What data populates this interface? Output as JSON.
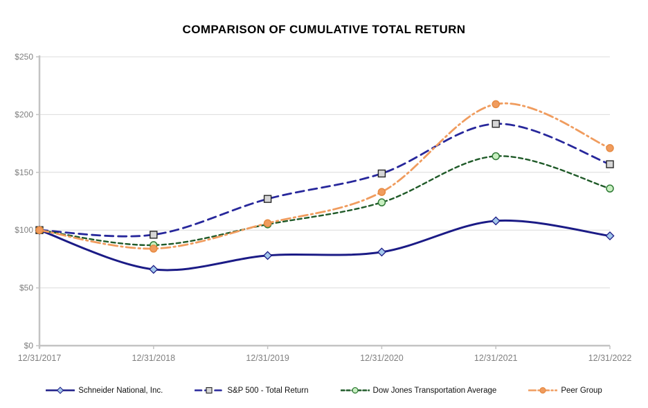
{
  "title": "COMPARISON OF CUMULATIVE TOTAL RETURN",
  "chart_data": {
    "type": "line",
    "title": "COMPARISON OF CUMULATIVE TOTAL RETURN",
    "x_labels": [
      "12/31/2017",
      "12/31/2018",
      "12/31/2019",
      "12/31/2020",
      "12/31/2021",
      "12/31/2022"
    ],
    "y_ticks": [
      "$0",
      "$50",
      "$100",
      "$150",
      "$200",
      "$250"
    ],
    "ylim": [
      0,
      250
    ],
    "y_tick_step": 50,
    "grid": true,
    "smoothed_lines": true,
    "legend_position": "bottom",
    "series": [
      {
        "name": "Schneider National, Inc.",
        "values": [
          100,
          66,
          78,
          81,
          108,
          95
        ],
        "color": "#1B1B86",
        "dash": "solid",
        "width": 3,
        "marker": "diamond",
        "marker_fill": "#A3C7EA",
        "marker_stroke": "#1B1B86"
      },
      {
        "name": "S&P 500 - Total Return",
        "values": [
          100,
          96,
          127,
          149,
          192,
          157
        ],
        "color": "#27279B",
        "dash": "12 7",
        "width": 2.8,
        "marker": "square",
        "marker_fill": "#D6D6D6",
        "marker_stroke": "#262626"
      },
      {
        "name": "Dow Jones Transportation Average",
        "values": [
          100,
          87,
          105,
          124,
          164,
          136
        ],
        "color": "#1F5A28",
        "dash": "6 4.5",
        "width": 2.4,
        "marker": "circle",
        "marker_fill": "#C8EFC1",
        "marker_stroke": "#2F7A35"
      },
      {
        "name": "Peer Group",
        "values": [
          100,
          84,
          106,
          133,
          209,
          171
        ],
        "color": "#F09C5E",
        "dash": "13 5 2.5 5",
        "width": 2.8,
        "marker": "circle",
        "marker_fill": "#F09C5E",
        "marker_stroke": "#E68A42"
      }
    ]
  },
  "colors": {
    "gridline": "#DCDCDC",
    "axis": "#C3C3C3",
    "axis_label": "#7F7F7F",
    "background": "#FFFFFF",
    "title_text": "#000000",
    "legend_text": "#111111"
  }
}
